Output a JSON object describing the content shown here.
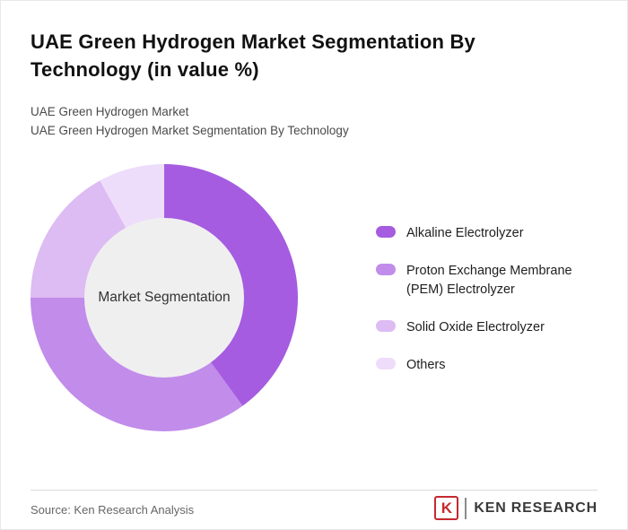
{
  "header": {
    "title": "UAE Green Hydrogen Market Segmentation By Technology (in value %)",
    "subtitle1": "UAE Green Hydrogen Market",
    "subtitle2": "UAE Green Hydrogen Market Segmentation By Technology"
  },
  "chart_data": {
    "type": "pie",
    "variant": "donut",
    "title": "UAE Green Hydrogen Market Segmentation By Technology (in value %)",
    "center_label": "Market Segmentation",
    "start_angle_deg": 0,
    "direction": "clockwise",
    "legend_position": "right",
    "values_shown_on_chart": false,
    "hole_color": "#efeff0",
    "slices": [
      {
        "label": "Alkaline Electrolyzer",
        "value": 40,
        "color": "#a55ce0"
      },
      {
        "label": "Proton Exchange Membrane (PEM) Electrolyzer",
        "value": 35,
        "color": "#c18cea"
      },
      {
        "label": "Solid Oxide Electrolyzer",
        "value": 17,
        "color": "#ddbbf3"
      },
      {
        "label": "Others",
        "value": 8,
        "color": "#eedcfb"
      }
    ]
  },
  "footer": {
    "source": "Source: Ken Research Analysis",
    "logo_letter": "K",
    "logo_text": "KEN RESEARCH",
    "logo_color": "#c5292f"
  }
}
